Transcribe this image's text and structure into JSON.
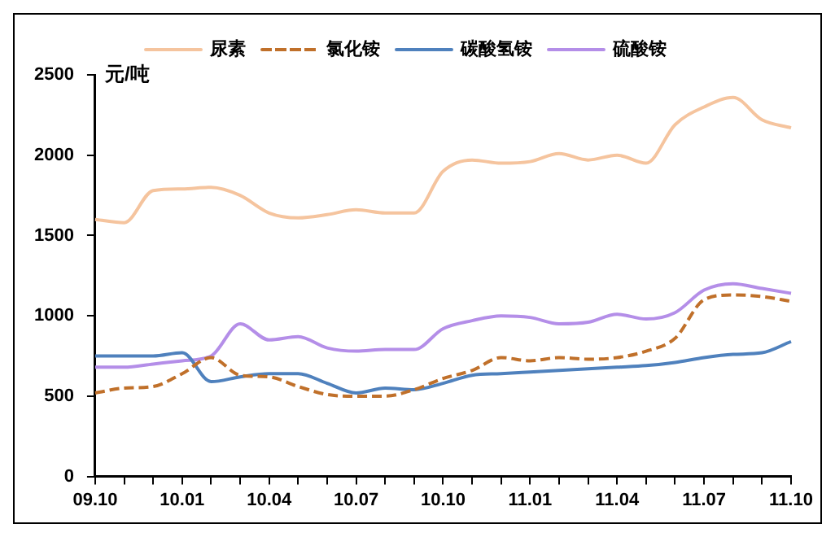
{
  "chart_data": {
    "type": "line",
    "ylabel": "元/吨",
    "categories": [
      "09.10",
      null,
      null,
      "10.01",
      null,
      null,
      "10.04",
      null,
      null,
      "10.07",
      null,
      null,
      "10.10",
      null,
      null,
      "11.01",
      null,
      null,
      "11.04",
      null,
      null,
      "11.07",
      null,
      null,
      "11.10"
    ],
    "series": [
      {
        "name": "尿素",
        "color": "#f5c49e",
        "line_style": "solid",
        "values": [
          1600,
          1580,
          1780,
          1790,
          1800,
          1750,
          1640,
          1610,
          1630,
          1660,
          1640,
          1640,
          1900,
          1970,
          1950,
          1960,
          2010,
          1970,
          2000,
          1950,
          2190,
          2300,
          2360,
          2220,
          2170
        ]
      },
      {
        "name": "氯化铵",
        "color": "#c0702a",
        "line_style": "dashed",
        "values": [
          520,
          550,
          560,
          640,
          740,
          630,
          620,
          560,
          510,
          500,
          500,
          540,
          610,
          660,
          740,
          720,
          740,
          730,
          740,
          780,
          860,
          1100,
          1130,
          1120,
          1090
        ]
      },
      {
        "name": "碳酸氢铵",
        "color": "#4f81bd",
        "line_style": "solid",
        "values": [
          750,
          750,
          750,
          770,
          590,
          620,
          640,
          640,
          580,
          520,
          550,
          540,
          580,
          630,
          640,
          650,
          660,
          670,
          680,
          690,
          710,
          740,
          760,
          770,
          840
        ]
      },
      {
        "name": "硫酸铵",
        "color": "#b48ee8",
        "line_style": "solid",
        "values": [
          680,
          680,
          700,
          720,
          750,
          950,
          850,
          870,
          800,
          780,
          790,
          790,
          920,
          970,
          1000,
          990,
          950,
          960,
          1010,
          980,
          1020,
          1160,
          1200,
          1170,
          1140
        ]
      }
    ],
    "ylim": [
      0,
      2500
    ],
    "yticks": [
      0,
      500,
      1000,
      1500,
      2000,
      2500
    ],
    "grid": false,
    "legend": "top",
    "marker": "none"
  }
}
